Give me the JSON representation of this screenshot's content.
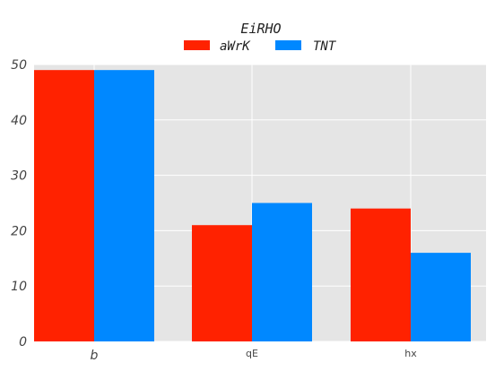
{
  "chart_data": {
    "type": "bar",
    "categories": [
      "b",
      "qE",
      "hx"
    ],
    "series": [
      {
        "name": "aWrK",
        "color": "#ff2200",
        "values": [
          49,
          21,
          24
        ]
      },
      {
        "name": "TNT",
        "color": "#0088ff",
        "values": [
          49,
          25,
          16
        ]
      }
    ],
    "legend_title": "EiRHO",
    "legend_position": "top-center",
    "ylim": [
      0,
      50
    ],
    "yticks": [
      0,
      10,
      20,
      30,
      40,
      50
    ],
    "grid": true,
    "background": "#e5e5e5",
    "grid_color": "#ffffff"
  }
}
